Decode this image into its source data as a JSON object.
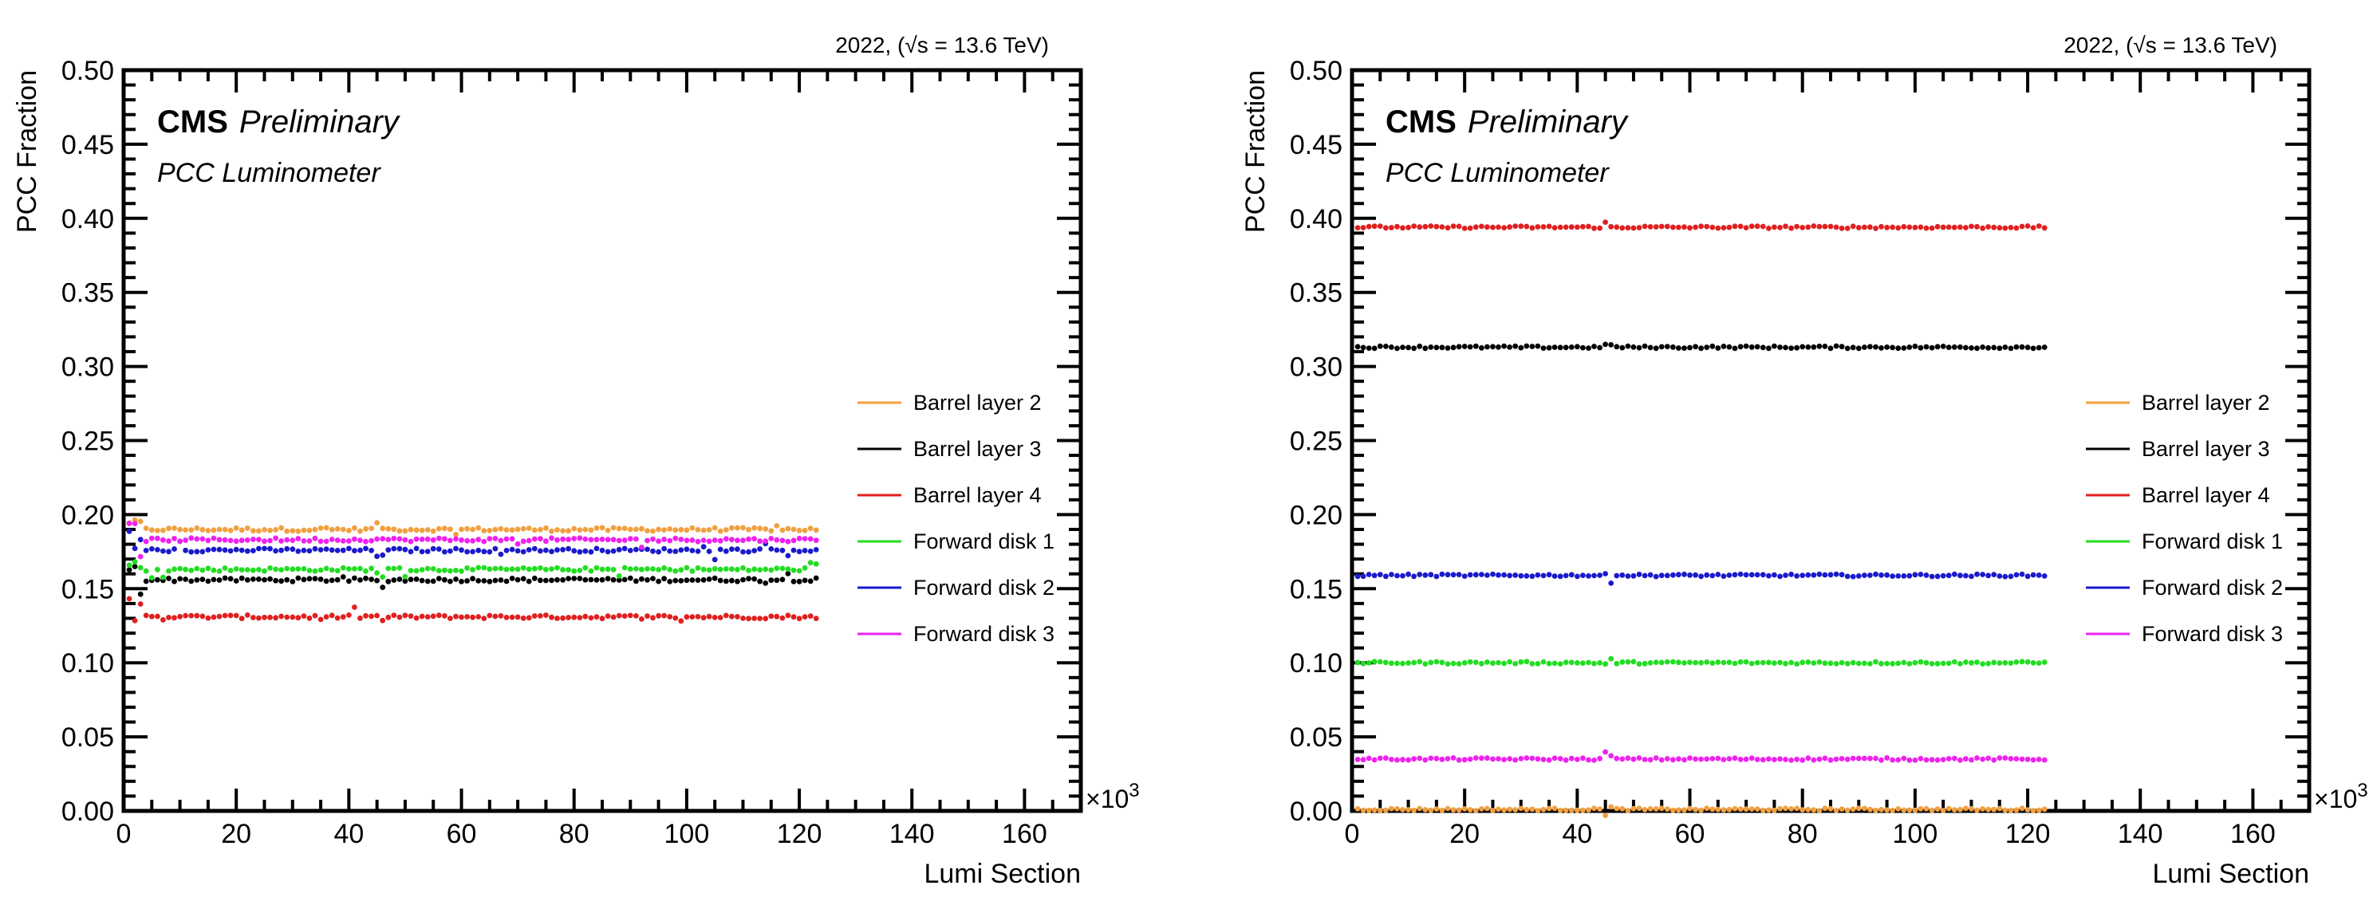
{
  "chart_data": [
    {
      "type": "scatter",
      "top_label": "2022, (√s = 13.6 TeV)",
      "experiment": "CMS",
      "status": "Preliminary",
      "subtitle": "PCC Luminometer",
      "xlabel": "Lumi Section",
      "ylabel": "PCC Fraction",
      "x_multiplier": "×10",
      "x_multiplier_exp": "3",
      "xlim": [
        0,
        170
      ],
      "ylim": [
        0,
        0.5
      ],
      "x_tick_labels": [
        "0",
        "20",
        "40",
        "60",
        "80",
        "100",
        "120",
        "140",
        "160"
      ],
      "y_tick_labels": [
        "0.00",
        "0.05",
        "0.10",
        "0.15",
        "0.20",
        "0.25",
        "0.30",
        "0.35",
        "0.40",
        "0.45",
        "0.50"
      ],
      "legend_position": "center-right",
      "x_range_data": [
        1,
        123
      ],
      "series": [
        {
          "name": "Barrel layer 2",
          "color": "#f0a040",
          "level": 0.19
        },
        {
          "name": "Barrel layer 3",
          "color": "#000000",
          "level": 0.156
        },
        {
          "name": "Barrel layer 4",
          "color": "#e02020",
          "level": 0.131
        },
        {
          "name": "Forward disk 1",
          "color": "#22dd22",
          "level": 0.163
        },
        {
          "name": "Forward disk 2",
          "color": "#1a1acc",
          "level": 0.176
        },
        {
          "name": "Forward disk 3",
          "color": "#ee22ee",
          "level": 0.183
        }
      ]
    },
    {
      "type": "scatter",
      "top_label": "2022, (√s = 13.6 TeV)",
      "experiment": "CMS",
      "status": "Preliminary",
      "subtitle": "PCC Luminometer",
      "xlabel": "Lumi Section",
      "ylabel": "PCC Fraction",
      "x_multiplier": "×10",
      "x_multiplier_exp": "3",
      "xlim": [
        0,
        170
      ],
      "ylim": [
        0,
        0.5
      ],
      "x_tick_labels": [
        "0",
        "20",
        "40",
        "60",
        "80",
        "100",
        "120",
        "140",
        "160"
      ],
      "y_tick_labels": [
        "0.00",
        "0.05",
        "0.10",
        "0.15",
        "0.20",
        "0.25",
        "0.30",
        "0.35",
        "0.40",
        "0.45",
        "0.50"
      ],
      "legend_position": "center-right",
      "x_range_data": [
        1,
        123
      ],
      "series": [
        {
          "name": "Barrel layer 2",
          "color": "#f0a040",
          "level": 0.001
        },
        {
          "name": "Barrel layer 3",
          "color": "#000000",
          "level": 0.313
        },
        {
          "name": "Barrel layer 4",
          "color": "#e02020",
          "level": 0.394
        },
        {
          "name": "Forward disk 1",
          "color": "#22dd22",
          "level": 0.1
        },
        {
          "name": "Forward disk 2",
          "color": "#1a1acc",
          "level": 0.159
        },
        {
          "name": "Forward disk 3",
          "color": "#ee22ee",
          "level": 0.035
        }
      ]
    }
  ]
}
